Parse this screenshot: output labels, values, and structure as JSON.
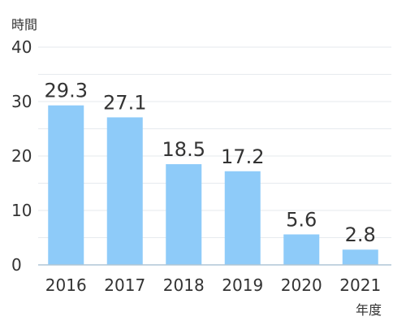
{
  "chart_data": {
    "type": "bar",
    "title": "",
    "xlabel": "年度",
    "ylabel": "時間",
    "categories": [
      "2016",
      "2017",
      "2018",
      "2019",
      "2020",
      "2021"
    ],
    "values": [
      29.3,
      27.1,
      18.5,
      17.2,
      5.6,
      2.8
    ],
    "value_labels": [
      "29.3",
      "27.1",
      "18.5",
      "17.2",
      "5.6",
      "2.8"
    ],
    "ylim": [
      0,
      40
    ],
    "yticks": [
      0,
      10,
      20,
      30,
      40
    ],
    "grid": true,
    "legend": "none",
    "bar_color": "#8ECBF9",
    "axis_color": "#AFC6D6",
    "grid_color": "#E6EAEE",
    "text_color": "#333333"
  }
}
